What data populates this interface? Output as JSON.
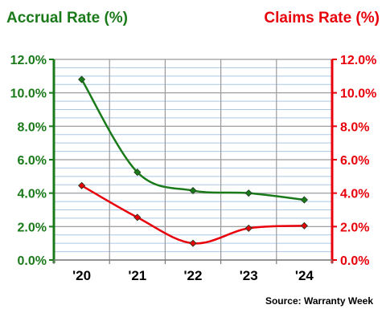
{
  "chart_data": {
    "type": "line",
    "categories": [
      "'20",
      "'21",
      "'22",
      "'23",
      "'24"
    ],
    "series": [
      {
        "name": "Accrual Rate (%)",
        "axis": "left",
        "color": "#1a7a1a",
        "values": [
          10.8,
          5.25,
          4.15,
          4.0,
          3.6
        ]
      },
      {
        "name": "Claims Rate (%)",
        "axis": "right",
        "color": "#e8000b",
        "values": [
          4.45,
          2.55,
          1.0,
          1.9,
          2.05
        ]
      }
    ],
    "y_left": {
      "label": "Accrual Rate (%)",
      "range": [
        0,
        12
      ],
      "ticks": [
        "0.0%",
        "2.0%",
        "4.0%",
        "6.0%",
        "8.0%",
        "10.0%",
        "12.0%"
      ],
      "color": "#1a7a1a"
    },
    "y_right": {
      "label": "Claims Rate (%)",
      "range": [
        0,
        12
      ],
      "ticks": [
        "0.0%",
        "2.0%",
        "4.0%",
        "6.0%",
        "8.0%",
        "10.0%",
        "12.0%"
      ],
      "color": "#e8000b"
    },
    "grid": true,
    "source": "Source: Warranty Week"
  }
}
